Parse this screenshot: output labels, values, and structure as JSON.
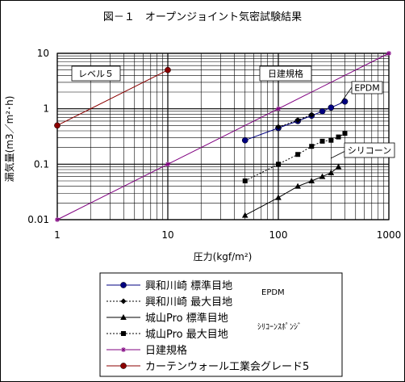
{
  "chart_data": {
    "type": "line",
    "title": "図－１　オープンジョイント気密試験結果",
    "xlabel": "圧力(kgf/m²)",
    "ylabel": "漏気量(m3／m²･h)",
    "xscale": "log",
    "yscale": "log",
    "xlim": [
      1,
      1000
    ],
    "ylim": [
      0.01,
      10
    ],
    "x_ticks": [
      "1",
      "10",
      "100",
      "1000"
    ],
    "y_ticks": [
      "0.01",
      "0.1",
      "1",
      "10"
    ],
    "grid": true,
    "legend_position": "bottom",
    "series": [
      {
        "name": "興和川崎 標準目地",
        "color": "#000080",
        "marker": "circle",
        "line": "solid",
        "legend_note": "EPDM",
        "x": [
          50,
          100,
          150,
          200,
          250,
          300,
          400
        ],
        "y": [
          0.27,
          0.45,
          0.6,
          0.75,
          0.9,
          1.05,
          1.35
        ]
      },
      {
        "name": "興和川崎 最大目地",
        "color": "#000000",
        "marker": "diamond",
        "line": "dotted",
        "x": [
          100,
          150,
          200
        ],
        "y": [
          0.47,
          0.62,
          0.78
        ]
      },
      {
        "name": "城山Pro 標準目地",
        "color": "#000000",
        "marker": "triangle",
        "line": "solid",
        "legend_note": "ｼﾘｺｰﾝｽﾎﾟﾝｼﾞ",
        "x": [
          50,
          100,
          150,
          200,
          250,
          300,
          350
        ],
        "y": [
          0.012,
          0.025,
          0.04,
          0.05,
          0.06,
          0.07,
          0.09
        ]
      },
      {
        "name": "城山Pro 最大目地",
        "color": "#000000",
        "marker": "square",
        "line": "dotted",
        "x": [
          50,
          100,
          150,
          200,
          250,
          300,
          350,
          400
        ],
        "y": [
          0.05,
          0.1,
          0.15,
          0.21,
          0.26,
          0.27,
          0.31,
          0.36
        ]
      },
      {
        "name": "日建規格",
        "color": "#800080",
        "marker": "star",
        "line": "solid",
        "x": [
          1,
          10,
          100,
          1000
        ],
        "y": [
          0.01,
          0.1,
          1,
          10
        ]
      },
      {
        "name": "カーテンウォール工業会グレード5",
        "color": "#8B0000",
        "marker": "circle",
        "line": "solid",
        "x": [
          1,
          10
        ],
        "y": [
          0.5,
          5
        ]
      }
    ],
    "annotations": [
      "レベル５",
      "日建規格",
      "EPDM",
      "シリコーン"
    ]
  }
}
